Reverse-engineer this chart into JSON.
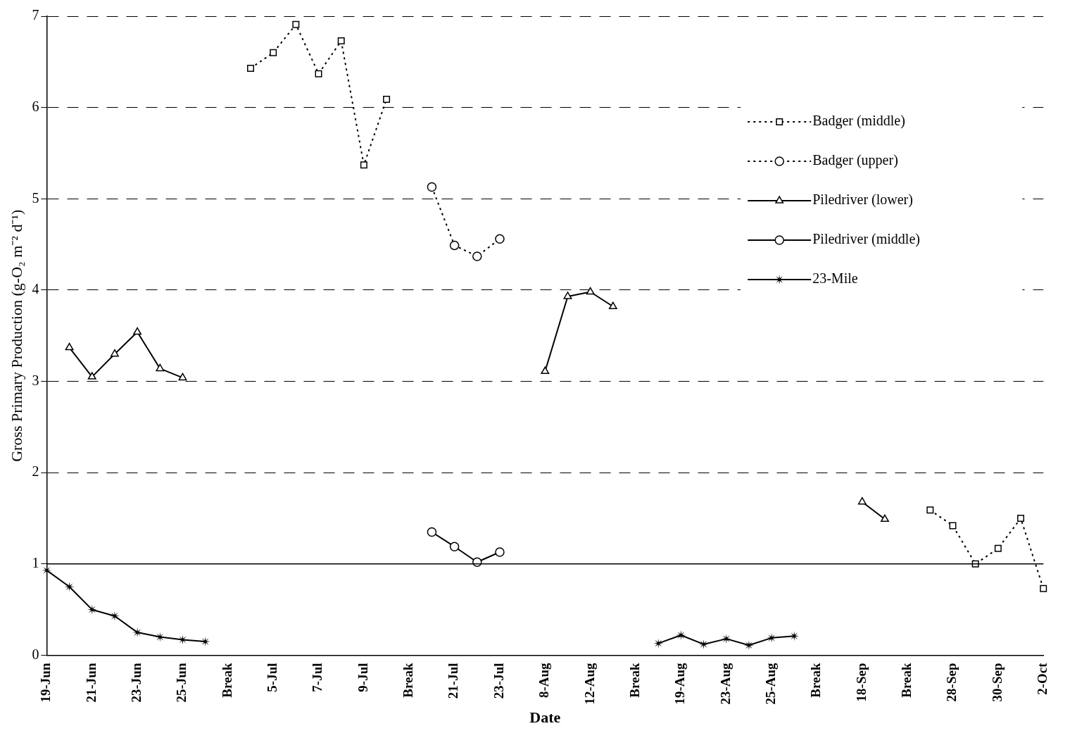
{
  "chart_data": {
    "type": "line",
    "xlabel": "Date",
    "ylabel": "Gross Primary Production (g-O₂ m⁻² d⁻¹)",
    "categories": [
      "19-Jun",
      null,
      "21-Jun",
      null,
      "23-Jun",
      null,
      "25-Jun",
      null,
      "Break",
      null,
      "5-Jul",
      null,
      "7-Jul",
      null,
      "9-Jul",
      null,
      "Break",
      null,
      "21-Jul",
      null,
      "23-Jul",
      null,
      "8-Aug",
      null,
      "12-Aug",
      null,
      "Break",
      null,
      "19-Aug",
      null,
      "23-Aug",
      null,
      "25-Aug",
      null,
      "Break",
      null,
      "18-Sep",
      null,
      "Break",
      null,
      "28-Sep",
      null,
      "30-Sep",
      null,
      "2-Oct"
    ],
    "series": [
      {
        "name": "Badger (middle)",
        "color": "#000000",
        "marker": "square",
        "line_style": "dotted",
        "values": [
          null,
          null,
          null,
          null,
          null,
          null,
          null,
          null,
          null,
          6.43,
          6.6,
          6.91,
          6.37,
          6.73,
          5.37,
          6.09,
          null,
          null,
          null,
          null,
          null,
          null,
          null,
          null,
          null,
          null,
          null,
          null,
          null,
          null,
          null,
          null,
          null,
          null,
          null,
          null,
          null,
          null,
          null,
          1.59,
          1.42,
          1.0,
          1.17,
          1.5,
          0.73
        ]
      },
      {
        "name": "Badger (upper)",
        "color": "#000000",
        "marker": "circle",
        "line_style": "dotted",
        "values": [
          null,
          null,
          null,
          null,
          null,
          null,
          null,
          null,
          null,
          null,
          null,
          null,
          null,
          null,
          null,
          null,
          null,
          5.13,
          4.49,
          4.37,
          4.56,
          null,
          null,
          null,
          null,
          null,
          null,
          null,
          null,
          null,
          null,
          null,
          null,
          null,
          null,
          null,
          null,
          null,
          null,
          null,
          null,
          null,
          null,
          null,
          null
        ]
      },
      {
        "name": "Piledriver (lower)",
        "color": "#000000",
        "marker": "triangle",
        "line_style": "solid",
        "values": [
          null,
          3.37,
          3.05,
          3.3,
          3.54,
          3.14,
          3.04,
          null,
          null,
          null,
          null,
          null,
          null,
          null,
          null,
          null,
          null,
          null,
          null,
          null,
          null,
          null,
          3.11,
          3.93,
          3.98,
          3.82,
          null,
          null,
          null,
          null,
          null,
          null,
          null,
          null,
          null,
          null,
          1.68,
          1.49,
          null,
          null,
          null,
          null,
          null,
          null,
          null
        ]
      },
      {
        "name": "Piledriver (middle)",
        "color": "#000000",
        "marker": "circle",
        "line_style": "solid",
        "values": [
          null,
          null,
          null,
          null,
          null,
          null,
          null,
          null,
          null,
          null,
          null,
          null,
          null,
          null,
          null,
          null,
          null,
          1.35,
          1.19,
          1.02,
          1.13,
          null,
          null,
          null,
          null,
          null,
          null,
          null,
          null,
          null,
          null,
          null,
          null,
          null,
          null,
          null,
          null,
          null,
          null,
          null,
          null,
          null,
          null,
          null,
          null
        ]
      },
      {
        "name": "23-Mile",
        "color": "#000000",
        "marker": "star",
        "line_style": "solid",
        "values": [
          0.93,
          0.75,
          0.5,
          0.43,
          0.25,
          0.2,
          0.17,
          0.15,
          null,
          null,
          null,
          null,
          null,
          null,
          null,
          null,
          null,
          null,
          null,
          null,
          null,
          null,
          null,
          null,
          null,
          null,
          null,
          0.13,
          0.22,
          0.12,
          0.18,
          0.11,
          0.19,
          0.21,
          null,
          null,
          null,
          null,
          null,
          null,
          null,
          null,
          null,
          null,
          null
        ]
      }
    ],
    "ylim": [
      0,
      7
    ],
    "yticks": [
      0,
      1,
      2,
      3,
      4,
      5,
      6,
      7
    ],
    "grid": "y",
    "legend": "top right",
    "ref_lines": [
      {
        "axis": "y",
        "value": 1
      }
    ]
  }
}
